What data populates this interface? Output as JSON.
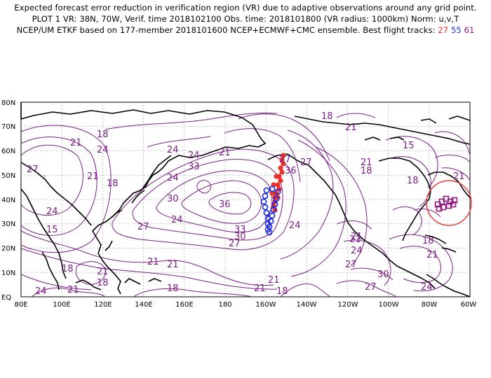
{
  "header": {
    "line1": "Expected forecast error reduction in verification region (VR) due to adaptive observations around any grid point.",
    "line2": "PLOT 1 VR: 38N, 70W, Verif. time 2018102100 Obs. time: 2018101800 (VR radius: 1000km) Norm: u,v,T",
    "line3_prefix": "NCEP/UM ETKF based on 177-member 2018101600 NCEP+ECMWF+CMC ensemble. Best flight tracks:",
    "track_a": "27",
    "track_b": "55",
    "track_c": "61"
  },
  "map": {
    "lat_labels": [
      "EQ",
      "10N",
      "20N",
      "30N",
      "40N",
      "50N",
      "60N",
      "70N",
      "80N"
    ],
    "lon_labels": [
      "80E",
      "100E",
      "120E",
      "140E",
      "160E",
      "180",
      "160W",
      "140W",
      "120W",
      "100W",
      "80W",
      "60W"
    ],
    "contour_color": "#7a1f86",
    "track_colors": {
      "track_27": "#e8322a",
      "track_55": "#1b2ad8",
      "track_61": "#8b1a7a",
      "vr_circle": "#e04040"
    },
    "contour_labels": [
      {
        "text": "27"
      },
      {
        "text": "24"
      },
      {
        "text": "21"
      },
      {
        "text": "18"
      },
      {
        "text": "24"
      },
      {
        "text": "21"
      },
      {
        "text": "18"
      },
      {
        "text": "24"
      },
      {
        "text": "15"
      },
      {
        "text": "24"
      },
      {
        "text": "33"
      },
      {
        "text": "24"
      },
      {
        "text": "21"
      },
      {
        "text": "30"
      },
      {
        "text": "36"
      },
      {
        "text": "27"
      },
      {
        "text": "24"
      },
      {
        "text": "33"
      },
      {
        "text": "30"
      },
      {
        "text": "27"
      },
      {
        "text": "21"
      },
      {
        "text": "21"
      },
      {
        "text": "18"
      },
      {
        "text": "21"
      },
      {
        "text": "24"
      },
      {
        "text": "18"
      },
      {
        "text": "21"
      },
      {
        "text": "27"
      },
      {
        "text": "36"
      },
      {
        "text": "27"
      },
      {
        "text": "21"
      },
      {
        "text": "18"
      },
      {
        "text": "24"
      },
      {
        "text": "21"
      },
      {
        "text": "18"
      },
      {
        "text": "21"
      },
      {
        "text": "18"
      },
      {
        "text": "21"
      },
      {
        "text": "24"
      },
      {
        "text": "21"
      },
      {
        "text": "27"
      },
      {
        "text": "30"
      },
      {
        "text": "27"
      },
      {
        "text": "24"
      },
      {
        "text": "21"
      },
      {
        "text": "18"
      },
      {
        "text": "15"
      },
      {
        "text": "18"
      },
      {
        "text": "21"
      },
      {
        "text": "18"
      },
      {
        "text": "21"
      }
    ]
  }
}
